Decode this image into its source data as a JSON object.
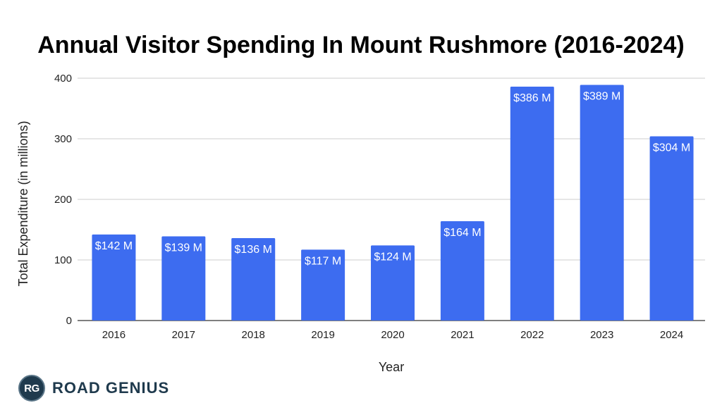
{
  "chart_data": {
    "type": "bar",
    "title": "Annual Visitor Spending In Mount Rushmore (2016-2024)",
    "xlabel": "Year",
    "ylabel": "Total Expenditure (in millions)",
    "categories": [
      "2016",
      "2017",
      "2018",
      "2019",
      "2020",
      "2021",
      "2022",
      "2023",
      "2024"
    ],
    "values": [
      142,
      139,
      136,
      117,
      124,
      164,
      386,
      389,
      304
    ],
    "data_labels": [
      "$142 M",
      "$139 M",
      "$136 M",
      "$117 M",
      "$124 M",
      "$164 M",
      "$386 M",
      "$389 M",
      "$304 M"
    ],
    "ylim": [
      0,
      400
    ],
    "yticks": [
      0,
      100,
      200,
      300,
      400
    ],
    "ytick_labels": [
      "0",
      "100",
      "200",
      "300",
      "400"
    ],
    "grid": true,
    "legend": "none",
    "bar_color": "#3d6cf0",
    "grid_color": "#cccccc"
  },
  "brand": {
    "logo_text": "RG",
    "name": "ROAD GENIUS",
    "logo_icon": "road-genius-logo-icon"
  }
}
